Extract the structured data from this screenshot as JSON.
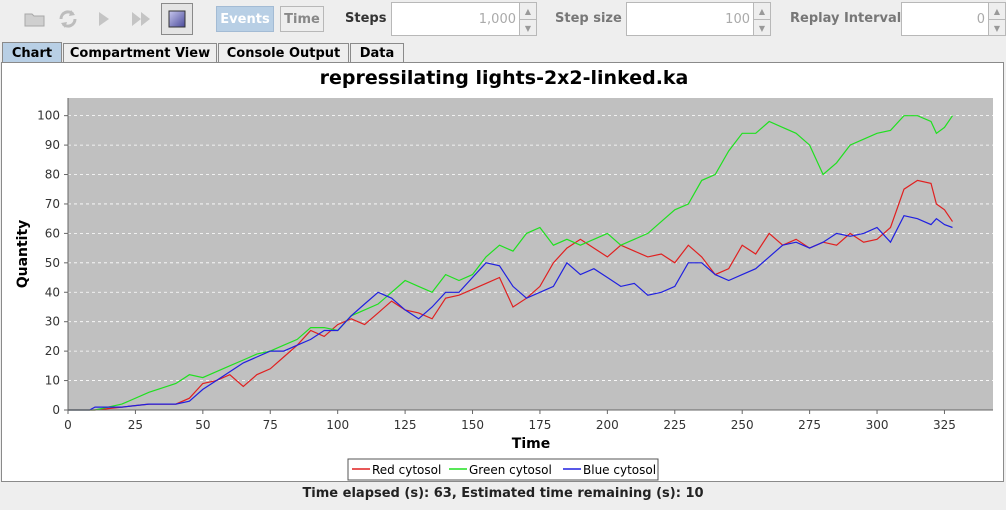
{
  "toolbar": {
    "events_label": "Events",
    "time_label": "Time",
    "steps_label": "Steps",
    "steps_value": "1,000",
    "step_size_label": "Step size",
    "step_size_value": "100",
    "replay_label": "Replay Interval",
    "replay_value": "0"
  },
  "tabs": [
    "Chart",
    "Compartment View",
    "Console Output",
    "Data"
  ],
  "status": "Time elapsed (s): 63, Estimated time remaining (s): 10",
  "colors": {
    "plot_bg": "#c0c0c0",
    "red": "#e02020",
    "green": "#20e020",
    "blue": "#2020e0",
    "selected_tab": "#b8cfe5"
  },
  "chart_data": {
    "type": "line",
    "title": "repressilating lights-2x2-linked.ka",
    "xlabel": "Time",
    "ylabel": "Quantity",
    "xlim": [
      0,
      343
    ],
    "ylim": [
      0,
      106
    ],
    "xticks": [
      "0",
      "25",
      "50",
      "75",
      "100",
      "125",
      "150",
      "175",
      "200",
      "225",
      "250",
      "275",
      "300",
      "325"
    ],
    "yticks": [
      "0",
      "10",
      "20",
      "30",
      "40",
      "50",
      "60",
      "70",
      "80",
      "90",
      "100"
    ],
    "grid": true,
    "legend": "bottom",
    "series": [
      {
        "name": "Red cytosol",
        "color": "#e02020",
        "x": [
          0,
          10,
          20,
          30,
          40,
          45,
          50,
          55,
          60,
          65,
          70,
          75,
          80,
          85,
          90,
          95,
          100,
          105,
          110,
          115,
          120,
          125,
          130,
          135,
          140,
          145,
          150,
          155,
          160,
          165,
          170,
          175,
          180,
          185,
          190,
          195,
          200,
          205,
          210,
          215,
          220,
          225,
          230,
          235,
          240,
          245,
          250,
          255,
          260,
          265,
          270,
          275,
          280,
          285,
          290,
          295,
          300,
          305,
          310,
          315,
          320,
          322,
          325,
          328
        ],
        "y": [
          0,
          0,
          1,
          2,
          2,
          4,
          9,
          10,
          12,
          8,
          12,
          14,
          18,
          22,
          27,
          25,
          29,
          31,
          29,
          33,
          37,
          34,
          33,
          31,
          38,
          39,
          41,
          43,
          45,
          35,
          38,
          42,
          50,
          55,
          58,
          55,
          52,
          56,
          54,
          52,
          53,
          50,
          56,
          52,
          46,
          48,
          56,
          53,
          60,
          56,
          58,
          55,
          57,
          56,
          60,
          57,
          58,
          62,
          75,
          78,
          77,
          70,
          68,
          64
        ]
      },
      {
        "name": "Green cytosol",
        "color": "#20e020",
        "x": [
          0,
          10,
          20,
          30,
          40,
          45,
          50,
          55,
          60,
          65,
          70,
          75,
          80,
          85,
          90,
          95,
          100,
          105,
          110,
          115,
          120,
          125,
          130,
          135,
          140,
          145,
          150,
          155,
          160,
          165,
          170,
          175,
          180,
          185,
          190,
          195,
          200,
          205,
          210,
          215,
          220,
          225,
          230,
          235,
          240,
          245,
          250,
          255,
          260,
          265,
          270,
          275,
          280,
          285,
          290,
          295,
          300,
          305,
          310,
          315,
          320,
          322,
          325,
          328
        ],
        "y": [
          0,
          0,
          2,
          6,
          9,
          12,
          11,
          13,
          15,
          17,
          19,
          20,
          22,
          24,
          28,
          28,
          27,
          32,
          34,
          36,
          40,
          44,
          42,
          40,
          46,
          44,
          46,
          52,
          56,
          54,
          60,
          62,
          56,
          58,
          56,
          58,
          60,
          56,
          58,
          60,
          64,
          68,
          70,
          78,
          80,
          88,
          94,
          94,
          98,
          96,
          94,
          90,
          80,
          84,
          90,
          92,
          94,
          95,
          100,
          100,
          98,
          94,
          96,
          100
        ]
      },
      {
        "name": "Blue cytosol",
        "color": "#2020e0",
        "x": [
          0,
          8,
          10,
          20,
          30,
          40,
          45,
          50,
          55,
          60,
          65,
          70,
          75,
          80,
          85,
          90,
          95,
          100,
          105,
          110,
          115,
          120,
          125,
          130,
          135,
          140,
          145,
          150,
          155,
          160,
          165,
          170,
          175,
          180,
          185,
          190,
          195,
          200,
          205,
          210,
          215,
          220,
          225,
          230,
          235,
          240,
          245,
          250,
          255,
          260,
          265,
          270,
          275,
          280,
          285,
          290,
          295,
          300,
          305,
          310,
          315,
          320,
          322,
          325,
          328
        ],
        "y": [
          0,
          0,
          1,
          1,
          2,
          2,
          3,
          7,
          10,
          13,
          16,
          18,
          20,
          20,
          22,
          24,
          27,
          27,
          32,
          36,
          40,
          38,
          34,
          31,
          35,
          40,
          40,
          45,
          50,
          49,
          42,
          38,
          40,
          42,
          50,
          46,
          48,
          45,
          42,
          43,
          39,
          40,
          42,
          50,
          50,
          46,
          44,
          46,
          48,
          52,
          56,
          57,
          55,
          57,
          60,
          59,
          60,
          62,
          57,
          66,
          65,
          63,
          65,
          63,
          62
        ]
      }
    ]
  }
}
